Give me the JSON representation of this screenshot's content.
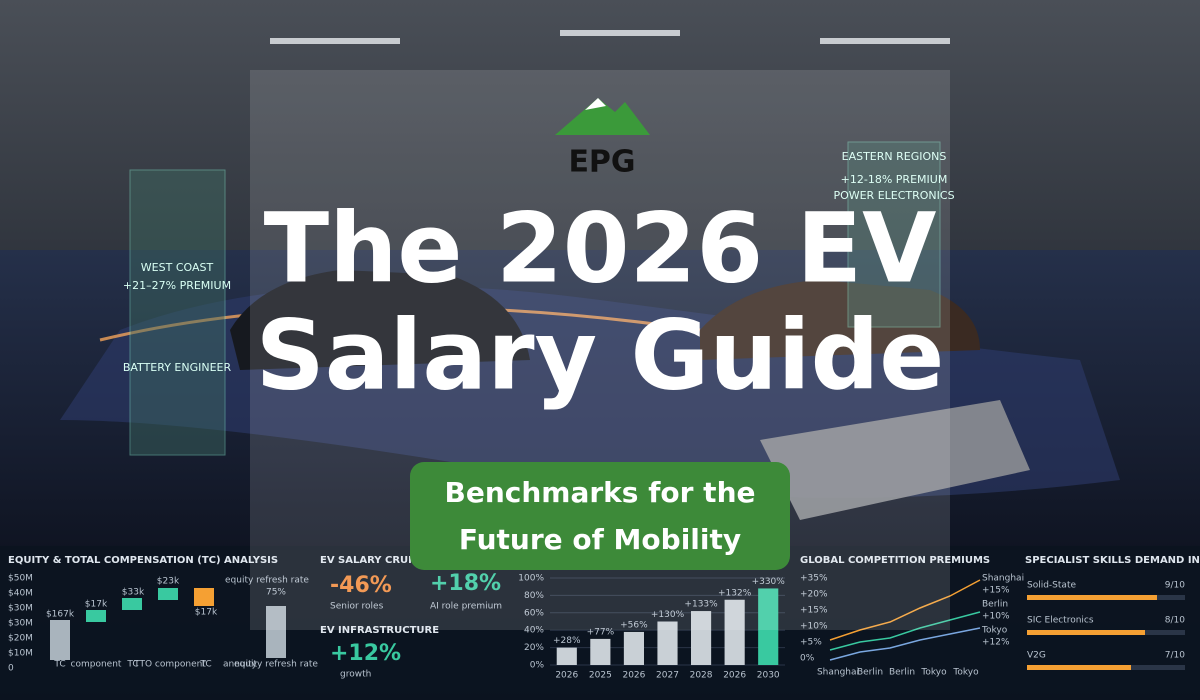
{
  "logo": {
    "text": "EPG"
  },
  "title": {
    "lines": [
      "The 2026 EV",
      "Salary Guide"
    ]
  },
  "subtitle": {
    "lines": [
      "Benchmarks for the",
      "Future of Mobility"
    ]
  },
  "holograms": {
    "west": {
      "title": "WEST COAST",
      "premium": "+21–27% PREMIUM",
      "role": "BATTERY ENGINEER"
    },
    "east": {
      "title": "EASTERN REGIONS",
      "premium": "+12-18% PREMIUM",
      "role": "POWER ELECTRONICS"
    }
  },
  "dashboard": {
    "equity": {
      "title": "EQUITY & TOTAL COMPENSATION (TC) ANALYSIS",
      "axis": [
        "$50M",
        "$40M",
        "$30M",
        "$30M",
        "$20M",
        "$10M",
        "0"
      ],
      "labels": [
        "$167k",
        "$17k",
        "$33k",
        "$23k",
        "$17k",
        "75%"
      ],
      "legend": "equity refresh rate",
      "categories": [
        "TC",
        "component",
        "TC",
        "TTO component",
        "TC",
        "annuity",
        "equity refresh rate"
      ]
    },
    "crunch": {
      "title": "EV SALARY CRUNCH",
      "stats": [
        {
          "value": "-46%",
          "label": "Senior roles"
        },
        {
          "value": "+18%",
          "label": "AI role premium"
        }
      ],
      "infra_title": "EV INFRASTRUCTURE",
      "infra_value": "+12%",
      "infra_label": "growth"
    },
    "growth": {
      "yticks": [
        {
          "value": 0,
          "label": "0%"
        },
        {
          "value": 20,
          "label": "20%"
        },
        {
          "value": 40,
          "label": "40%"
        },
        {
          "value": 60,
          "label": "60%"
        },
        {
          "value": 80,
          "label": "80%"
        },
        {
          "value": 100,
          "label": "100%"
        }
      ],
      "ylim": [
        0,
        100
      ],
      "categories": [
        "2026",
        "2025",
        "2026",
        "2027",
        "2028",
        "2026",
        "2030"
      ],
      "values": [
        20,
        30,
        38,
        50,
        62,
        75,
        88
      ],
      "annotations": [
        "+28%",
        "+77%",
        "+56%",
        "+130%",
        "+133%",
        "+132%",
        "+330%"
      ]
    },
    "global": {
      "title": "GLOBAL COMPETITION PREMIUMS",
      "axis": [
        "+35%",
        "+20%",
        "+15%",
        "+10%",
        "+5%",
        "0%"
      ],
      "series": [
        {
          "name": "Shanghai",
          "label": "+15%"
        },
        {
          "name": "Berlin",
          "label": "+10%"
        },
        {
          "name": "Tokyo",
          "label": "+12%"
        }
      ],
      "categories": [
        "Shanghai",
        "Berlin",
        "Berlin",
        "Tokyo",
        "Tokyo"
      ]
    },
    "skills": {
      "title": "SPECIALIST SKILLS DEMAND INDEX",
      "items": [
        {
          "name": "Solid-State",
          "score": "9/10"
        },
        {
          "name": "SIC Electronics",
          "score": "8/10"
        },
        {
          "name": "V2G",
          "score": "7/10"
        }
      ]
    }
  }
}
